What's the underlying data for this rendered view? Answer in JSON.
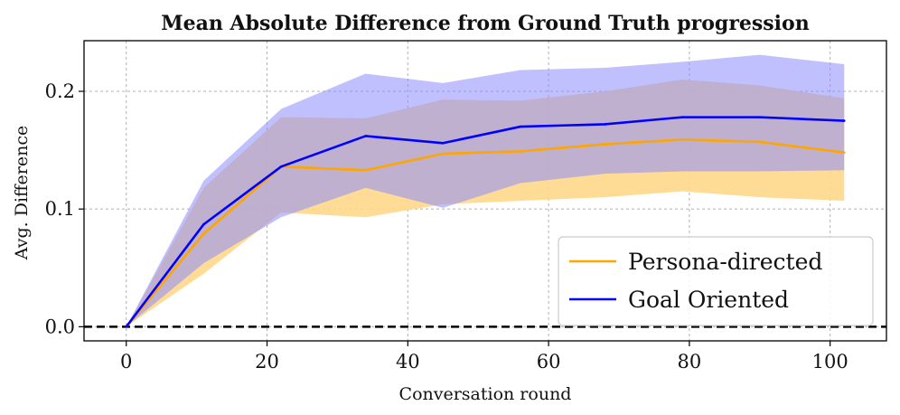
{
  "chart_data": {
    "type": "line",
    "title": "Mean Absolute Difference from Ground Truth progression",
    "xlabel": "Conversation round",
    "ylabel": "Avg. Difference",
    "xlim": [
      -6,
      108
    ],
    "ylim": [
      -0.012,
      0.243
    ],
    "xticks": [
      0,
      20,
      40,
      60,
      80,
      100
    ],
    "yticks": [
      0.0,
      0.1,
      0.2
    ],
    "grid": true,
    "legend_position": "lower-right",
    "reference_line": {
      "y": 0.0,
      "style": "dashed",
      "color": "#000000"
    },
    "x": [
      0,
      11,
      22,
      34,
      45,
      56,
      68,
      79,
      90,
      102
    ],
    "series": [
      {
        "name": "Persona-directed",
        "color": "#ffa500",
        "band_color": "#ffd88a",
        "values": [
          0.0,
          0.079,
          0.136,
          0.133,
          0.147,
          0.149,
          0.155,
          0.159,
          0.157,
          0.148
        ],
        "lower": [
          0.0,
          0.045,
          0.097,
          0.093,
          0.104,
          0.107,
          0.11,
          0.115,
          0.11,
          0.107
        ],
        "upper": [
          0.0,
          0.118,
          0.178,
          0.177,
          0.193,
          0.192,
          0.2,
          0.21,
          0.205,
          0.194
        ]
      },
      {
        "name": "Goal Oriented",
        "color": "#0000ff",
        "band_color": "#8c8cff",
        "values": [
          0.0,
          0.087,
          0.136,
          0.162,
          0.156,
          0.17,
          0.172,
          0.178,
          0.178,
          0.175
        ],
        "lower": [
          0.0,
          0.054,
          0.093,
          0.118,
          0.101,
          0.122,
          0.13,
          0.132,
          0.132,
          0.133
        ],
        "upper": [
          0.0,
          0.124,
          0.185,
          0.215,
          0.207,
          0.218,
          0.22,
          0.225,
          0.231,
          0.223
        ]
      }
    ]
  }
}
